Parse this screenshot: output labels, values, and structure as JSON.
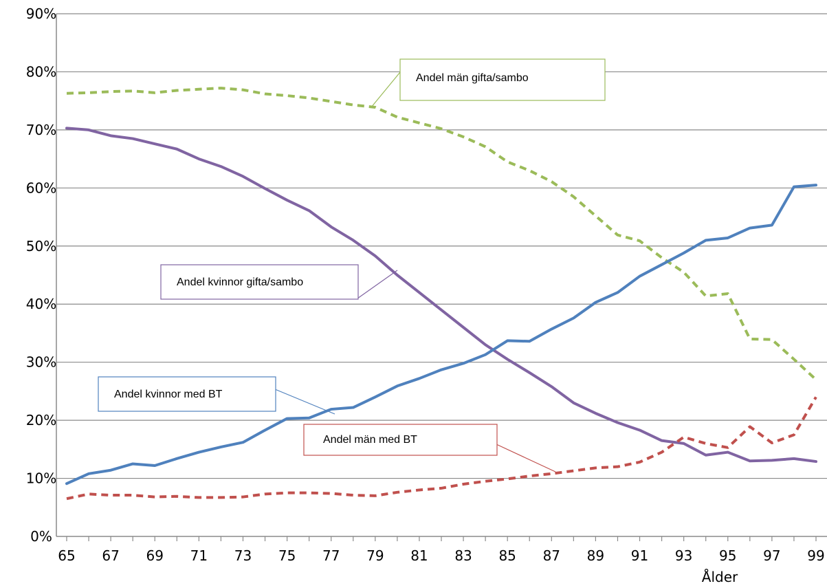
{
  "chart_data": {
    "type": "line",
    "xlabel": "Ålder",
    "ylabel": "",
    "title": "",
    "ylim": [
      0,
      90
    ],
    "xlim": [
      65,
      99
    ],
    "y_ticks": [
      "0%",
      "10%",
      "20%",
      "30%",
      "40%",
      "50%",
      "60%",
      "70%",
      "80%",
      "90%"
    ],
    "y_tick_values": [
      0,
      10,
      20,
      30,
      40,
      50,
      60,
      70,
      80,
      90
    ],
    "x_ticks": [
      "65",
      "67",
      "69",
      "71",
      "73",
      "75",
      "77",
      "79",
      "81",
      "83",
      "85",
      "87",
      "89",
      "91",
      "93",
      "95",
      "97",
      "99"
    ],
    "x_tick_values": [
      65,
      67,
      69,
      71,
      73,
      75,
      77,
      79,
      81,
      83,
      85,
      87,
      89,
      91,
      93,
      95,
      97,
      99
    ],
    "grid": "horizontal",
    "legend": "callouts",
    "x": [
      65,
      66,
      67,
      68,
      69,
      70,
      71,
      72,
      73,
      74,
      75,
      76,
      77,
      78,
      79,
      80,
      81,
      82,
      83,
      84,
      85,
      86,
      87,
      88,
      89,
      90,
      91,
      92,
      93,
      94,
      95,
      96,
      97,
      98,
      99
    ],
    "series": [
      {
        "name": "Andel män gifta/sambo",
        "color": "#9bbb59",
        "dash": "dashed",
        "values": [
          76.3,
          76.4,
          76.6,
          76.7,
          76.4,
          76.8,
          77.0,
          77.2,
          76.9,
          76.2,
          75.9,
          75.5,
          74.9,
          74.3,
          73.9,
          72.2,
          71.2,
          70.2,
          68.8,
          67.1,
          64.5,
          63.0,
          61.1,
          58.5,
          55.2,
          51.9,
          50.9,
          48.0,
          45.5,
          41.4,
          41.8,
          34.0,
          33.9,
          30.5,
          27.0
        ]
      },
      {
        "name": "Andel kvinnor gifta/sambo",
        "color": "#8064a2",
        "dash": "solid",
        "values": [
          70.3,
          70.0,
          69.0,
          68.5,
          67.6,
          66.7,
          65.0,
          63.7,
          62.0,
          59.9,
          57.9,
          56.1,
          53.3,
          51.0,
          48.3,
          45.0,
          42.0,
          39.0,
          36.0,
          33.0,
          30.5,
          28.2,
          25.8,
          23.0,
          21.2,
          19.6,
          18.3,
          16.5,
          16.0,
          14.0,
          14.5,
          13.0,
          13.1,
          13.4,
          12.9
        ]
      },
      {
        "name": "Andel kvinnor med BT",
        "color": "#4f81bd",
        "dash": "solid",
        "values": [
          9.1,
          10.8,
          11.4,
          12.5,
          12.2,
          13.4,
          14.5,
          15.4,
          16.2,
          18.3,
          20.3,
          20.4,
          21.9,
          22.2,
          24.0,
          25.9,
          27.2,
          28.7,
          29.8,
          31.3,
          33.7,
          33.6,
          35.7,
          37.6,
          40.3,
          42.0,
          44.8,
          46.8,
          48.8,
          51.0,
          51.4,
          53.1,
          53.6,
          60.2,
          60.5
        ]
      },
      {
        "name": "Andel män med BT",
        "color": "#c0504d",
        "dash": "dashed",
        "values": [
          6.5,
          7.3,
          7.1,
          7.1,
          6.8,
          6.9,
          6.7,
          6.7,
          6.8,
          7.3,
          7.5,
          7.5,
          7.4,
          7.1,
          7.0,
          7.6,
          8.0,
          8.3,
          9.0,
          9.5,
          9.9,
          10.4,
          10.8,
          11.3,
          11.8,
          12.0,
          12.8,
          14.5,
          17.1,
          16.0,
          15.3,
          18.9,
          16.1,
          17.5,
          24.0
        ]
      }
    ],
    "callouts": [
      {
        "label": "Andel män gifta/sambo",
        "border": "#9bbb59"
      },
      {
        "label": "Andel kvinnor gifta/sambo",
        "border": "#8064a2"
      },
      {
        "label": "Andel kvinnor med BT",
        "border": "#4f81bd"
      },
      {
        "label": "Andel män med BT",
        "border": "#c0504d"
      }
    ]
  }
}
